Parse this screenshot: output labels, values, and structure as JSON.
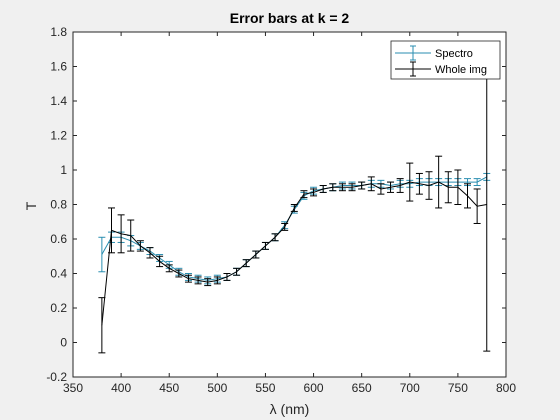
{
  "chart_data": {
    "type": "line",
    "title": "Error bars at k = 2",
    "xlabel": "λ (nm)",
    "ylabel": "T",
    "xlim": [
      350,
      800
    ],
    "ylim": [
      -0.2,
      1.8
    ],
    "xticks": [
      350,
      400,
      450,
      500,
      550,
      600,
      650,
      700,
      750,
      800
    ],
    "yticks": [
      -0.2,
      0,
      0.2,
      0.4,
      0.6,
      0.8,
      1,
      1.2,
      1.4,
      1.6,
      1.8
    ],
    "xtick_labels": [
      "350",
      "400",
      "450",
      "500",
      "550",
      "600",
      "650",
      "700",
      "750",
      "800"
    ],
    "ytick_labels": [
      "-0.2",
      "0",
      "0.2",
      "0.4",
      "0.6",
      "0.8",
      "1",
      "1.2",
      "1.4",
      "1.6",
      "1.8"
    ],
    "legend_position": "top-right",
    "grid": false,
    "series": [
      {
        "name": "Spectro",
        "color": "#2a8eb0",
        "x": [
          380,
          390,
          400,
          410,
          420,
          430,
          440,
          450,
          460,
          470,
          480,
          490,
          500,
          510,
          520,
          530,
          540,
          550,
          560,
          570,
          580,
          590,
          600,
          610,
          620,
          630,
          640,
          650,
          660,
          670,
          680,
          690,
          700,
          710,
          720,
          730,
          740,
          750,
          760,
          770,
          780
        ],
        "y": [
          0.51,
          0.61,
          0.61,
          0.59,
          0.56,
          0.53,
          0.49,
          0.45,
          0.41,
          0.38,
          0.37,
          0.36,
          0.37,
          0.38,
          0.41,
          0.46,
          0.51,
          0.56,
          0.61,
          0.68,
          0.77,
          0.85,
          0.88,
          0.89,
          0.9,
          0.91,
          0.91,
          0.91,
          0.92,
          0.92,
          0.91,
          0.92,
          0.92,
          0.93,
          0.93,
          0.93,
          0.93,
          0.93,
          0.93,
          0.93,
          0.96
        ],
        "err": [
          0.1,
          0.03,
          0.03,
          0.03,
          0.02,
          0.02,
          0.02,
          0.02,
          0.02,
          0.02,
          0.02,
          0.02,
          0.02,
          0.02,
          0.02,
          0.02,
          0.02,
          0.02,
          0.02,
          0.02,
          0.02,
          0.02,
          0.02,
          0.02,
          0.02,
          0.02,
          0.02,
          0.02,
          0.02,
          0.02,
          0.02,
          0.02,
          0.02,
          0.02,
          0.02,
          0.02,
          0.02,
          0.02,
          0.02,
          0.02,
          0.02
        ]
      },
      {
        "name": "Whole img",
        "color": "#000000",
        "x": [
          380,
          390,
          400,
          410,
          420,
          430,
          440,
          450,
          460,
          470,
          480,
          490,
          500,
          510,
          520,
          530,
          540,
          550,
          560,
          570,
          580,
          590,
          600,
          610,
          620,
          630,
          640,
          650,
          660,
          670,
          680,
          690,
          700,
          710,
          720,
          730,
          740,
          750,
          760,
          770,
          780
        ],
        "y": [
          0.1,
          0.65,
          0.63,
          0.62,
          0.56,
          0.52,
          0.47,
          0.43,
          0.4,
          0.37,
          0.36,
          0.35,
          0.36,
          0.38,
          0.41,
          0.46,
          0.51,
          0.56,
          0.61,
          0.67,
          0.78,
          0.86,
          0.87,
          0.89,
          0.9,
          0.9,
          0.9,
          0.91,
          0.92,
          0.89,
          0.9,
          0.91,
          0.93,
          0.92,
          0.91,
          0.93,
          0.9,
          0.9,
          0.85,
          0.79,
          0.8
        ],
        "err": [
          0.16,
          0.13,
          0.11,
          0.09,
          0.03,
          0.03,
          0.03,
          0.02,
          0.02,
          0.02,
          0.02,
          0.02,
          0.02,
          0.02,
          0.02,
          0.02,
          0.02,
          0.02,
          0.02,
          0.02,
          0.02,
          0.02,
          0.02,
          0.02,
          0.02,
          0.02,
          0.02,
          0.02,
          0.04,
          0.03,
          0.03,
          0.04,
          0.11,
          0.06,
          0.08,
          0.15,
          0.09,
          0.1,
          0.07,
          0.1,
          0.85
        ]
      }
    ]
  }
}
